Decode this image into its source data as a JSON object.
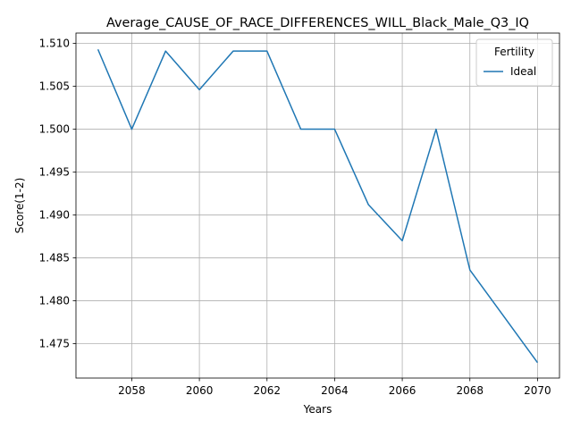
{
  "chart_data": {
    "type": "line",
    "title": "Average_CAUSE_OF_RACE_DIFFERENCES_WILL_Black_Male_Q3_IQ",
    "xlabel": "Years",
    "ylabel": "Score(1-2)",
    "x": [
      2057,
      2058,
      2059,
      2060,
      2061,
      2062,
      2063,
      2064,
      2065,
      2066,
      2067,
      2068,
      2069,
      2070
    ],
    "series": [
      {
        "name": "Ideal",
        "color": "#1f77b4",
        "values": [
          1.5093,
          1.5,
          1.5091,
          1.5046,
          1.5091,
          1.5091,
          1.5,
          1.5,
          1.4912,
          1.487,
          1.5,
          1.4836,
          1.4782,
          1.4728
        ]
      }
    ],
    "xlim": [
      2056.35,
      2070.65
    ],
    "ylim": [
      1.471,
      1.5112
    ],
    "xticks": [
      2058,
      2060,
      2062,
      2064,
      2066,
      2068,
      2070
    ],
    "yticks": [
      1.475,
      1.48,
      1.485,
      1.49,
      1.495,
      1.5,
      1.505,
      1.51
    ],
    "grid": true,
    "legend": {
      "title": "Fertility",
      "placement": "top-right"
    }
  }
}
